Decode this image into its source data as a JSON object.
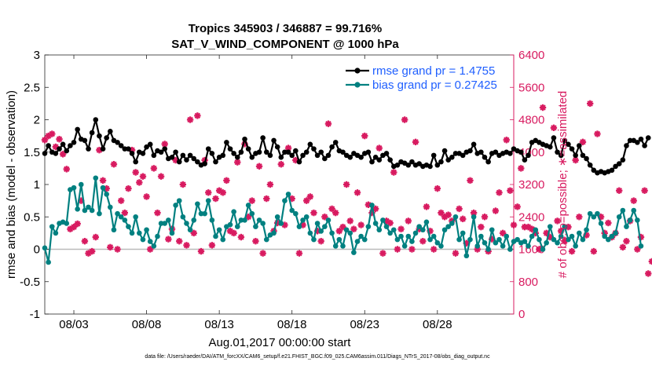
{
  "chart_data": {
    "type": "line",
    "title": "Tropics 345903 / 346887 = 99.716%",
    "subtitle": "SAT_V_WIND_COMPONENT @ 1000 hPa",
    "xlabel": "Aug.01,2017 00:00:00 start",
    "ylabel": "rmse and bias (model - observation)",
    "ylabel_right": "# of obs: o=possible; ∗=assimilated",
    "ylim": [
      -1,
      3
    ],
    "ylim_right": [
      0,
      6400
    ],
    "xlim": [
      1.0,
      33.25
    ],
    "yticks": [
      "-1",
      "-0.5",
      "0",
      "0.5",
      "1",
      "1.5",
      "2",
      "2.5",
      "3"
    ],
    "yticks_right": [
      "0",
      "800",
      "1600",
      "2400",
      "3200",
      "4000",
      "4800",
      "5600",
      "6400"
    ],
    "xtick_positions": [
      3,
      8,
      13,
      18,
      23,
      28
    ],
    "xtick_labels": [
      "08/03",
      "08/08",
      "08/13",
      "08/18",
      "08/23",
      "08/28"
    ],
    "footnote": "data file: /Users/raeder/DAI/ATM_forcXX/CAM6_setup/f.e21.FHIST_BGC.f09_025.CAM6assim.011/Diags_NTrS_2017-08/obs_diag_output.nc",
    "colors": {
      "rmse": "#000000",
      "bias": "#008080",
      "obs": "#d81b60",
      "zero_line": "#bbbbbb",
      "legend_text": "#1f5fff",
      "right_axis": "#d81b60"
    },
    "series": [
      {
        "name": "rmse",
        "legend": "rmse grand pr = 1.4755",
        "x_start": 1.0,
        "x_step": 0.25,
        "values": [
          1.48,
          1.6,
          1.5,
          1.48,
          1.55,
          1.62,
          1.52,
          1.6,
          1.65,
          1.85,
          1.7,
          1.68,
          1.55,
          1.8,
          2.0,
          1.75,
          1.55,
          1.72,
          1.82,
          1.68,
          1.65,
          1.6,
          1.55,
          1.55,
          1.48,
          1.35,
          1.5,
          1.48,
          1.58,
          1.62,
          1.45,
          1.52,
          1.5,
          1.55,
          1.4,
          1.42,
          1.5,
          1.35,
          1.45,
          1.38,
          1.45,
          1.4,
          1.35,
          1.3,
          1.32,
          1.55,
          1.48,
          1.35,
          1.42,
          1.45,
          1.65,
          1.55,
          1.48,
          1.42,
          1.5,
          1.7,
          1.55,
          1.42,
          1.48,
          1.5,
          1.72,
          1.5,
          1.45,
          1.68,
          1.58,
          1.42,
          1.5,
          1.5,
          1.45,
          1.52,
          1.35,
          1.45,
          1.5,
          1.62,
          1.55,
          1.45,
          1.5,
          1.4,
          1.45,
          1.58,
          1.65,
          1.52,
          1.5,
          1.45,
          1.42,
          1.48,
          1.45,
          1.42,
          1.48,
          1.5,
          1.35,
          1.42,
          1.38,
          1.45,
          1.48,
          1.38,
          1.28,
          1.3,
          1.35,
          1.33,
          1.3,
          1.35,
          1.3,
          1.32,
          1.28,
          1.3,
          1.28,
          1.45,
          1.3,
          1.35,
          1.52,
          1.38,
          1.42,
          1.48,
          1.48,
          1.45,
          1.5,
          1.52,
          1.62,
          1.48,
          1.5,
          1.42,
          1.35,
          1.48,
          1.5,
          1.45,
          1.48,
          1.5,
          1.48,
          1.55,
          1.52,
          1.5,
          1.38,
          1.45,
          1.65,
          1.68,
          1.65,
          1.62,
          1.6,
          1.58,
          1.72,
          1.5,
          1.45,
          1.68,
          1.62,
          1.55,
          1.45,
          1.6,
          1.45,
          1.4,
          1.3,
          1.22,
          1.18,
          1.2,
          1.18,
          1.2,
          1.22,
          1.28,
          1.32,
          1.38,
          1.6,
          1.68,
          1.68,
          1.65,
          1.7,
          1.6,
          1.72
        ]
      },
      {
        "name": "bias",
        "legend": "bias grand pr = 0.27425",
        "x_start": 1.0,
        "x_step": 0.25,
        "values": [
          0.02,
          -0.2,
          0.35,
          0.25,
          0.4,
          0.42,
          0.4,
          0.92,
          0.95,
          0.62,
          1.0,
          0.6,
          0.65,
          0.6,
          1.1,
          0.55,
          0.95,
          0.85,
          0.65,
          0.3,
          0.55,
          0.5,
          0.45,
          0.35,
          0.25,
          0.5,
          0.25,
          0.15,
          0.3,
          0.12,
          0.05,
          0.2,
          0.4,
          0.4,
          0.45,
          0.25,
          0.68,
          0.75,
          0.5,
          0.4,
          0.3,
          0.45,
          0.7,
          0.55,
          0.55,
          0.75,
          0.45,
          0.2,
          0.3,
          0.15,
          0.35,
          0.38,
          0.58,
          0.35,
          0.45,
          0.45,
          0.68,
          0.55,
          0.35,
          0.45,
          0.4,
          0.15,
          0.22,
          0.25,
          0.5,
          0.4,
          0.75,
          0.85,
          0.6,
          0.55,
          0.35,
          0.45,
          0.5,
          0.25,
          0.15,
          0.4,
          0.28,
          0.35,
          0.45,
          0.25,
          0.05,
          0.15,
          0.05,
          0.3,
          0.25,
          -0.05,
          0.12,
          0.2,
          0.15,
          0.35,
          0.68,
          0.4,
          0.3,
          0.45,
          0.35,
          0.25,
          0.3,
          0.15,
          0.2,
          0.05,
          0.2,
          0.12,
          0.25,
          0.35,
          0.3,
          0.42,
          0.15,
          0.2,
          0.1,
          0.05,
          0.3,
          0.35,
          0.4,
          0.5,
          0.15,
          0.25,
          -0.1,
          0.15,
          0.5,
          0.05,
          0.2,
          0.1,
          0.0,
          0.3,
          0.1,
          0.15,
          0.05,
          0.2,
          0.0,
          0.12,
          0.15,
          0.1,
          0.12,
          0.05,
          0.2,
          0.3,
          0.15,
          0.0,
          0.1,
          0.35,
          0.15,
          0.1,
          0.2,
          0.35,
          0.15,
          0.2,
          0.05,
          0.25,
          0.15,
          0.3,
          0.55,
          0.5,
          0.55,
          0.4,
          0.2,
          0.15,
          0.2,
          0.25,
          0.5,
          0.6,
          0.35,
          0.45,
          0.6,
          0.45,
          0.05
        ]
      },
      {
        "name": "obs",
        "marker": "asterisk",
        "units": "count",
        "x_start": 1.0,
        "x_step": 0.25,
        "values": [
          4300,
          4400,
          4450,
          4130,
          4320,
          3950,
          3580,
          2100,
          2150,
          2230,
          2800,
          1800,
          1500,
          1550,
          1900,
          4050,
          3300,
          3100,
          1650,
          3700,
          1600,
          2800,
          2500,
          3100,
          4050,
          3500,
          3250,
          3400,
          2900,
          1600,
          3600,
          2500,
          3400,
          4200,
          1850,
          2100,
          3800,
          1800,
          3200,
          1700,
          4800,
          2000,
          4900,
          1550,
          3800,
          3000,
          1700,
          2850,
          3050,
          3000,
          3300,
          2050,
          2000,
          3750,
          1900,
          4200,
          2400,
          2800,
          1800,
          3650,
          1500,
          2850,
          3200,
          2050,
          2250,
          3700,
          2200,
          4100,
          2850,
          3800,
          1500,
          2200,
          2800,
          2900,
          2500,
          2050,
          1800,
          2400,
          4700,
          2600,
          2500,
          2050,
          2150,
          3200,
          2300,
          2100,
          3000,
          2200,
          4400,
          2700,
          2500,
          2600,
          4100,
          1500,
          2300,
          2250,
          3500,
          1600,
          2100,
          4800,
          2300,
          1600,
          4250,
          2100,
          1800,
          2650,
          2050,
          1600,
          3100,
          2500,
          2400,
          2450,
          2300,
          1500,
          2600,
          2350,
          1750,
          3300,
          2500,
          1600,
          2150,
          2400,
          1550,
          1850,
          2550,
          3000,
          2000,
          4300,
          3050,
          2200,
          2650,
          3600,
          2150,
          2150,
          2100,
          2000,
          1600,
          5100,
          2000,
          1900,
          4600,
          2300,
          2050,
          1800,
          2150,
          1550,
          3800,
          2400,
          4250,
          1950,
          5200,
          1550,
          4450,
          2400,
          2000,
          2250,
          1900,
          2000,
          3050,
          1650,
          1800,
          2300,
          2800,
          1600,
          1900,
          3050,
          1000,
          1300,
          0
        ]
      }
    ]
  }
}
